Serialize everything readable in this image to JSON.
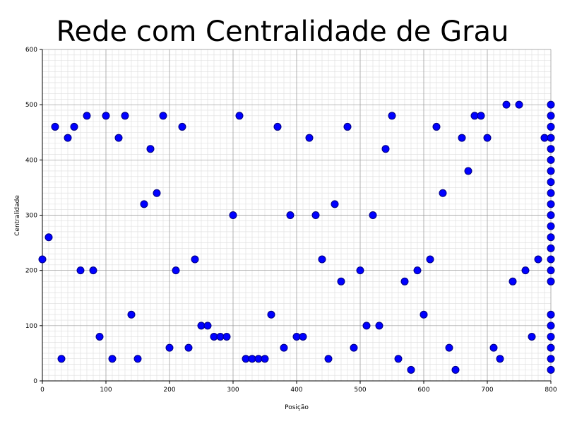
{
  "chart_data": {
    "type": "scatter",
    "title": "Rede com Centralidade de Grau",
    "xlabel": "Posição",
    "ylabel": "Centralidade",
    "xlim": [
      0,
      800
    ],
    "ylim": [
      0,
      600
    ],
    "x_ticks": [
      0,
      100,
      200,
      300,
      400,
      500,
      600,
      700,
      800
    ],
    "y_ticks": [
      0,
      100,
      200,
      300,
      400,
      500,
      600
    ],
    "grid": true,
    "legend": "none",
    "marker_color": "#0000ff",
    "marker_edge_color": "#000080",
    "points": [
      [
        0,
        220
      ],
      [
        10,
        260
      ],
      [
        20,
        460
      ],
      [
        30,
        40
      ],
      [
        40,
        440
      ],
      [
        50,
        460
      ],
      [
        60,
        200
      ],
      [
        70,
        480
      ],
      [
        80,
        200
      ],
      [
        90,
        80
      ],
      [
        100,
        480
      ],
      [
        110,
        40
      ],
      [
        120,
        440
      ],
      [
        130,
        480
      ],
      [
        140,
        120
      ],
      [
        150,
        40
      ],
      [
        160,
        320
      ],
      [
        170,
        420
      ],
      [
        180,
        340
      ],
      [
        190,
        480
      ],
      [
        200,
        60
      ],
      [
        210,
        200
      ],
      [
        220,
        460
      ],
      [
        230,
        60
      ],
      [
        240,
        220
      ],
      [
        250,
        100
      ],
      [
        260,
        100
      ],
      [
        270,
        80
      ],
      [
        280,
        80
      ],
      [
        290,
        80
      ],
      [
        300,
        300
      ],
      [
        310,
        480
      ],
      [
        320,
        40
      ],
      [
        330,
        40
      ],
      [
        340,
        40
      ],
      [
        350,
        40
      ],
      [
        360,
        120
      ],
      [
        370,
        460
      ],
      [
        380,
        60
      ],
      [
        390,
        300
      ],
      [
        400,
        80
      ],
      [
        410,
        80
      ],
      [
        420,
        440
      ],
      [
        430,
        300
      ],
      [
        440,
        220
      ],
      [
        450,
        40
      ],
      [
        460,
        320
      ],
      [
        470,
        180
      ],
      [
        480,
        460
      ],
      [
        490,
        60
      ],
      [
        500,
        200
      ],
      [
        510,
        100
      ],
      [
        520,
        300
      ],
      [
        530,
        100
      ],
      [
        540,
        420
      ],
      [
        550,
        480
      ],
      [
        560,
        40
      ],
      [
        570,
        180
      ],
      [
        580,
        20
      ],
      [
        590,
        200
      ],
      [
        600,
        120
      ],
      [
        610,
        220
      ],
      [
        620,
        460
      ],
      [
        630,
        340
      ],
      [
        640,
        60
      ],
      [
        650,
        20
      ],
      [
        660,
        440
      ],
      [
        670,
        380
      ],
      [
        680,
        480
      ],
      [
        690,
        480
      ],
      [
        700,
        440
      ],
      [
        710,
        60
      ],
      [
        720,
        40
      ],
      [
        730,
        500
      ],
      [
        740,
        180
      ],
      [
        750,
        500
      ],
      [
        760,
        200
      ],
      [
        770,
        80
      ],
      [
        780,
        220
      ],
      [
        790,
        440
      ],
      [
        800,
        500
      ],
      [
        800,
        480
      ],
      [
        800,
        460
      ],
      [
        800,
        440
      ],
      [
        800,
        420
      ],
      [
        800,
        400
      ],
      [
        800,
        380
      ],
      [
        800,
        360
      ],
      [
        800,
        340
      ],
      [
        800,
        320
      ],
      [
        800,
        300
      ],
      [
        800,
        280
      ],
      [
        800,
        260
      ],
      [
        800,
        240
      ],
      [
        800,
        220
      ],
      [
        800,
        200
      ],
      [
        800,
        180
      ],
      [
        800,
        120
      ],
      [
        800,
        100
      ],
      [
        800,
        80
      ],
      [
        800,
        60
      ],
      [
        800,
        40
      ],
      [
        800,
        20
      ]
    ]
  }
}
